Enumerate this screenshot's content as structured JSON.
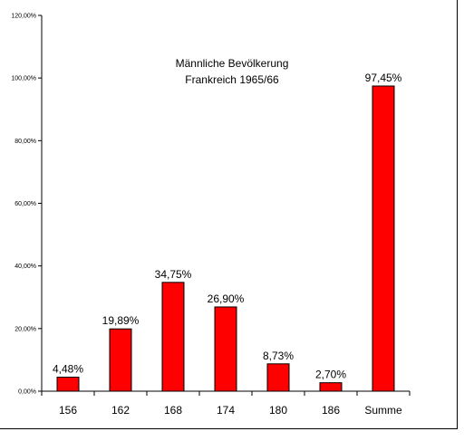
{
  "chart_data": {
    "type": "bar",
    "title_lines": [
      "Männliche Bevölkerung",
      "Frankreich 1965/66"
    ],
    "categories": [
      "156",
      "162",
      "168",
      "174",
      "180",
      "186",
      "Summe"
    ],
    "values": [
      4.48,
      19.89,
      34.75,
      26.9,
      8.73,
      2.7,
      97.45
    ],
    "value_labels": [
      "4,48%",
      "19,89%",
      "34,75%",
      "26,90%",
      "8,73%",
      "2,70%",
      "97,45%"
    ],
    "yticks": [
      0,
      20,
      40,
      60,
      80,
      100,
      120
    ],
    "ytick_labels": [
      "0,00%",
      "20,00%",
      "40,00%",
      "60,00%",
      "80,00%",
      "100,00%",
      "120,00%"
    ],
    "ylim": [
      0,
      120
    ],
    "grid": false,
    "legend": false,
    "colors": {
      "bar": "#ff0000",
      "bar_stroke": "#000000",
      "axis": "#000000"
    }
  }
}
